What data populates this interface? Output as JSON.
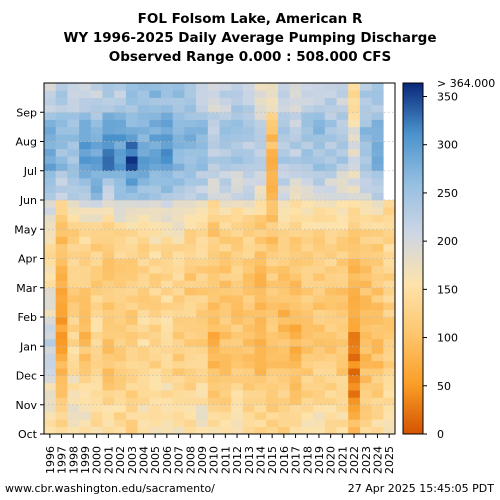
{
  "title_lines": [
    "FOL Folsom Lake, American R",
    "WY 1996-2025 Daily Average Pumping Discharge",
    "Observed Range 0.000 : 508.000 CFS"
  ],
  "footer_left": "www.cbr.washington.edu/sacramento/",
  "footer_right": "27 Apr 2025 15:45:05 PDT",
  "chart_data": {
    "type": "heatmap",
    "x_categories": [
      "1996",
      "1997",
      "1998",
      "1999",
      "2000",
      "2001",
      "2002",
      "2003",
      "2004",
      "2005",
      "2006",
      "2007",
      "2008",
      "2009",
      "2010",
      "2011",
      "2012",
      "2013",
      "2014",
      "2015",
      "2016",
      "2017",
      "2018",
      "2019",
      "2020",
      "2021",
      "2022",
      "2023",
      "2024",
      "2025"
    ],
    "y_ticks": [
      "Oct",
      "Nov",
      "Dec",
      "Jan",
      "Feb",
      "Mar",
      "Apr",
      "May",
      "Jun",
      "Jul",
      "Aug",
      "Sep"
    ],
    "colorbar": {
      "ticks": [
        0,
        50,
        100,
        150,
        200,
        250,
        300,
        350
      ],
      "max_label": "> 364.000",
      "range": [
        0,
        364
      ],
      "colors": [
        "#d45400",
        "#fa9e28",
        "#fdc66e",
        "#fde3ac",
        "#cdd6e4",
        "#95bfe1",
        "#4a92cc",
        "#08287a"
      ]
    },
    "monthly_typical_values": {
      "1996": [
        150,
        170,
        200,
        220,
        180,
        160,
        140,
        175,
        250,
        280,
        280,
        210
      ],
      "1997": [
        140,
        110,
        80,
        60,
        70,
        70,
        100,
        100,
        210,
        260,
        260,
        230
      ],
      "1998": [
        170,
        160,
        150,
        130,
        120,
        120,
        120,
        140,
        230,
        250,
        260,
        220
      ],
      "1999": [
        160,
        150,
        110,
        90,
        110,
        120,
        130,
        150,
        240,
        300,
        290,
        220
      ],
      "2000": [
        150,
        150,
        130,
        140,
        130,
        120,
        120,
        150,
        260,
        290,
        270,
        220
      ],
      "2001": [
        150,
        120,
        100,
        100,
        110,
        110,
        120,
        140,
        220,
        330,
        300,
        240
      ],
      "2002": [
        140,
        130,
        110,
        110,
        120,
        120,
        130,
        160,
        240,
        290,
        300,
        230
      ],
      "2003": [
        130,
        130,
        120,
        120,
        120,
        120,
        130,
        170,
        270,
        350,
        290,
        250
      ],
      "2004": [
        160,
        150,
        140,
        140,
        130,
        120,
        130,
        150,
        260,
        290,
        280,
        250
      ],
      "2005": [
        150,
        140,
        130,
        130,
        130,
        130,
        140,
        170,
        240,
        280,
        290,
        260
      ],
      "2006": [
        150,
        150,
        150,
        150,
        140,
        140,
        140,
        160,
        250,
        300,
        300,
        260
      ],
      "2007": [
        160,
        130,
        120,
        120,
        120,
        130,
        140,
        170,
        240,
        270,
        270,
        250
      ],
      "2008": [
        150,
        140,
        120,
        120,
        120,
        110,
        120,
        140,
        230,
        250,
        270,
        240
      ],
      "2009": [
        170,
        150,
        140,
        120,
        120,
        120,
        130,
        150,
        220,
        250,
        260,
        230
      ],
      "2010": [
        150,
        110,
        90,
        80,
        90,
        100,
        110,
        120,
        200,
        230,
        230,
        210
      ],
      "2011": [
        150,
        120,
        100,
        100,
        110,
        110,
        120,
        140,
        210,
        240,
        250,
        220
      ],
      "2012": [
        160,
        140,
        120,
        120,
        110,
        120,
        120,
        140,
        200,
        240,
        250,
        230
      ],
      "2013": [
        150,
        120,
        100,
        100,
        110,
        110,
        120,
        130,
        210,
        230,
        240,
        220
      ],
      "2014": [
        140,
        120,
        100,
        90,
        90,
        90,
        110,
        120,
        180,
        210,
        220,
        190
      ],
      "2015": [
        130,
        110,
        100,
        100,
        110,
        120,
        100,
        110,
        80,
        90,
        90,
        170
      ],
      "2016": [
        130,
        120,
        110,
        100,
        90,
        100,
        120,
        140,
        210,
        230,
        240,
        210
      ],
      "2017": [
        140,
        110,
        90,
        80,
        90,
        100,
        110,
        130,
        190,
        230,
        230,
        210
      ],
      "2018": [
        150,
        130,
        110,
        110,
        110,
        110,
        120,
        140,
        200,
        240,
        250,
        220
      ],
      "2019": [
        160,
        130,
        120,
        110,
        110,
        110,
        120,
        140,
        210,
        250,
        260,
        230
      ],
      "2020": [
        150,
        140,
        120,
        110,
        110,
        120,
        130,
        150,
        200,
        240,
        250,
        220
      ],
      "2021": [
        150,
        130,
        110,
        110,
        110,
        110,
        120,
        140,
        190,
        240,
        250,
        210
      ],
      "2022": [
        100,
        40,
        30,
        40,
        70,
        90,
        110,
        130,
        190,
        190,
        190,
        130
      ],
      "2023": [
        130,
        110,
        90,
        80,
        90,
        100,
        120,
        140,
        210,
        250,
        260,
        230
      ],
      "2024": [
        150,
        120,
        100,
        100,
        100,
        110,
        120,
        140,
        220,
        270,
        280,
        240
      ],
      "2025": [
        160,
        140,
        120,
        110,
        120,
        130,
        140,
        130
      ]
    }
  }
}
